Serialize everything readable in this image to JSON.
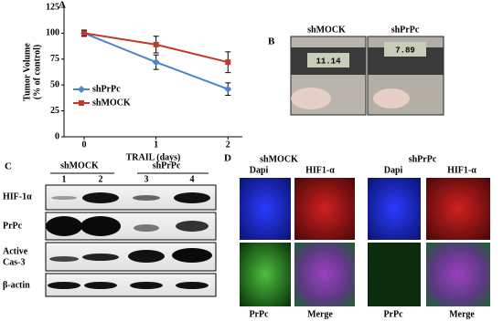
{
  "chart_data": {
    "type": "line",
    "panel": "A",
    "x_label": "TRAIL (days)",
    "y_label": [
      "Tumor Volume",
      "(% of control)"
    ],
    "x": [
      0,
      1,
      2
    ],
    "xlim": [
      -0.28,
      2.2
    ],
    "xticks": [
      0,
      1,
      2
    ],
    "ylim": [
      0,
      125
    ],
    "yticks": [
      0,
      25,
      50,
      75,
      100,
      125
    ],
    "series": [
      {
        "name": "shPrPc",
        "color": "#4a86c8",
        "marker": "diamond",
        "values": [
          100,
          72,
          46
        ],
        "errors": [
          3,
          7,
          6
        ]
      },
      {
        "name": "shMOCK",
        "color": "#c0392b",
        "marker": "square",
        "values": [
          100,
          89,
          72
        ],
        "errors": [
          3,
          8,
          10
        ]
      }
    ]
  },
  "panel_b": {
    "letter": "B",
    "labels": [
      "shMOCK",
      "shPrPc"
    ],
    "readings": [
      "11.14",
      "7.89"
    ]
  },
  "panel_c": {
    "letter": "C",
    "groups": [
      "shMOCK",
      "shPrPc"
    ],
    "lanes": [
      "1",
      "2",
      "3",
      "4"
    ],
    "rows": [
      [
        "HIF-1α"
      ],
      [
        "PrPc"
      ],
      [
        "Active",
        "Cas-3"
      ],
      [
        "β-actin"
      ]
    ]
  },
  "panel_d": {
    "letter": "D",
    "groups": [
      "shMOCK",
      "shPrPc"
    ],
    "top_labels": [
      "Dapi",
      "HIF1-α",
      "Dapi",
      "HIF1-α"
    ],
    "bottom_labels": [
      "PrPc",
      "Merge",
      "PrPc",
      "Merge"
    ]
  }
}
